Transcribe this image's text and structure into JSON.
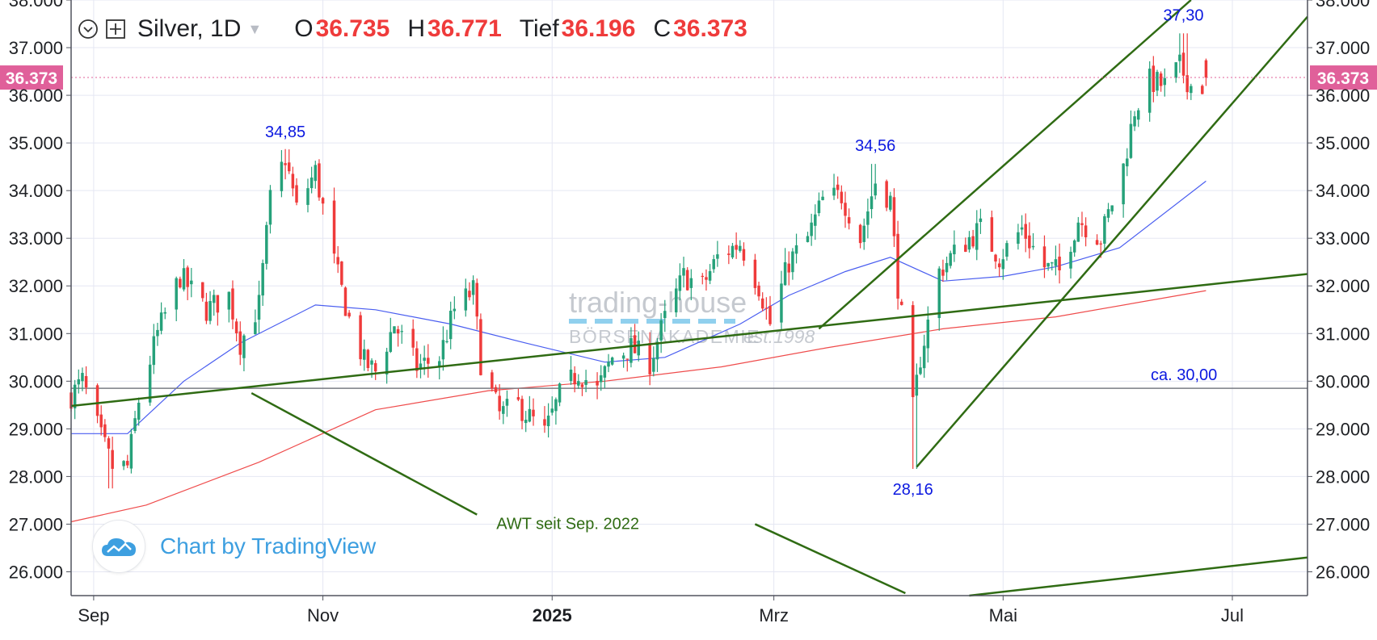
{
  "header": {
    "symbol": "Silver, 1D",
    "open_label": "O",
    "open": "36.735",
    "high_label": "H",
    "high": "36.771",
    "low_label": "Tief",
    "low": "36.196",
    "close_label": "C",
    "close": "36.373"
  },
  "attribution": "Chart by TradingView",
  "watermark": {
    "line1": "trading-house",
    "line2": "BÖRSENAKADEMIE",
    "line3": "est.1998"
  },
  "colors": {
    "up": "#26a17a",
    "down": "#ef3b3b",
    "ma_short": "#4a5ef0",
    "ma_long": "#ef4b4b",
    "trendline": "#2f6b13",
    "annotation": "#0b18e0",
    "price_tag": "#e0609a",
    "grid": "#e5e7f3"
  },
  "icons": {
    "collapse": "chevron-down-circle-icon",
    "add_symbol": "plus-square-icon",
    "logo": "tradingview-cloud-icon"
  },
  "chart_data": {
    "type": "candlestick",
    "xlabel": "",
    "ylabel": "",
    "grid": true,
    "legend": "none",
    "x_range": [
      "2024-08-26",
      "2025-07-21"
    ],
    "y_range": [
      25.5,
      38.0
    ],
    "y_ticks": [
      "26.000",
      "27.000",
      "28.000",
      "29.000",
      "30.000",
      "31.000",
      "32.000",
      "33.000",
      "34.000",
      "35.000",
      "36.000",
      "37.000",
      "38.000"
    ],
    "x_ticks": [
      {
        "date": "2024-09-01",
        "label": "Sep",
        "bold": false
      },
      {
        "date": "2024-11-01",
        "label": "Nov",
        "bold": false
      },
      {
        "date": "2025-01-01",
        "label": "2025",
        "bold": true
      },
      {
        "date": "2025-03-01",
        "label": "Mrz",
        "bold": false
      },
      {
        "date": "2025-05-01",
        "label": "Mai",
        "bold": false
      },
      {
        "date": "2025-07-01",
        "label": "Jul",
        "bold": false
      }
    ],
    "last_price": {
      "value": 36.373,
      "label": "36.373"
    },
    "price_path": [
      [
        "2024-08-26",
        29.7
      ],
      [
        "2024-08-29",
        30.0
      ],
      [
        "2024-09-03",
        28.8
      ],
      [
        "2024-09-06",
        28.2
      ],
      [
        "2024-09-10",
        28.2
      ],
      [
        "2024-09-13",
        29.6
      ],
      [
        "2024-09-18",
        31.0
      ],
      [
        "2024-09-24",
        32.2
      ],
      [
        "2024-10-01",
        31.5
      ],
      [
        "2024-10-07",
        31.8
      ],
      [
        "2024-10-10",
        30.8
      ],
      [
        "2024-10-15",
        31.6
      ],
      [
        "2024-10-18",
        33.8
      ],
      [
        "2024-10-22",
        34.7
      ],
      [
        "2024-10-25",
        33.6
      ],
      [
        "2024-10-30",
        34.4
      ],
      [
        "2024-11-04",
        32.5
      ],
      [
        "2024-11-08",
        31.3
      ],
      [
        "2024-11-12",
        30.4
      ],
      [
        "2024-11-15",
        30.2
      ],
      [
        "2024-11-20",
        31.2
      ],
      [
        "2024-11-26",
        30.3
      ],
      [
        "2024-12-02",
        30.5
      ],
      [
        "2024-12-06",
        31.5
      ],
      [
        "2024-12-11",
        31.9
      ],
      [
        "2024-12-13",
        30.4
      ],
      [
        "2024-12-18",
        29.3
      ],
      [
        "2024-12-23",
        29.5
      ],
      [
        "2024-12-30",
        28.9
      ],
      [
        "2025-01-03",
        29.7
      ],
      [
        "2025-01-08",
        30.2
      ],
      [
        "2025-01-13",
        29.8
      ],
      [
        "2025-01-17",
        30.5
      ],
      [
        "2025-01-22",
        30.7
      ],
      [
        "2025-01-27",
        30.4
      ],
      [
        "2025-01-31",
        31.3
      ],
      [
        "2025-02-05",
        32.2
      ],
      [
        "2025-02-10",
        32.0
      ],
      [
        "2025-02-14",
        32.6
      ],
      [
        "2025-02-20",
        32.9
      ],
      [
        "2025-02-25",
        32.0
      ],
      [
        "2025-02-28",
        31.2
      ],
      [
        "2025-03-05",
        32.5
      ],
      [
        "2025-03-10",
        33.0
      ],
      [
        "2025-03-14",
        33.8
      ],
      [
        "2025-03-19",
        33.9
      ],
      [
        "2025-03-24",
        33.0
      ],
      [
        "2025-03-28",
        34.2
      ],
      [
        "2025-04-01",
        33.8
      ],
      [
        "2025-04-03",
        32.0
      ],
      [
        "2025-04-07",
        29.4
      ],
      [
        "2025-04-09",
        30.5
      ],
      [
        "2025-04-14",
        32.3
      ],
      [
        "2025-04-17",
        32.6
      ],
      [
        "2025-04-22",
        33.0
      ],
      [
        "2025-04-25",
        33.2
      ],
      [
        "2025-04-30",
        32.6
      ],
      [
        "2025-05-06",
        33.2
      ],
      [
        "2025-05-12",
        32.4
      ],
      [
        "2025-05-16",
        32.3
      ],
      [
        "2025-05-21",
        33.4
      ],
      [
        "2025-05-27",
        33.0
      ],
      [
        "2025-06-02",
        34.5
      ],
      [
        "2025-06-05",
        35.7
      ],
      [
        "2025-06-09",
        36.3
      ],
      [
        "2025-06-13",
        36.2
      ],
      [
        "2025-06-17",
        36.6
      ],
      [
        "2025-06-20",
        36.2
      ],
      [
        "2025-06-24",
        36.2
      ]
    ],
    "price_spikes": [
      {
        "date": "2024-09-06",
        "low": 27.75
      },
      {
        "date": "2024-10-22",
        "high": 34.85
      },
      {
        "date": "2025-03-28",
        "high": 34.56
      },
      {
        "date": "2025-04-07",
        "low": 28.16
      },
      {
        "date": "2025-06-18",
        "high": 37.3
      }
    ],
    "moving_averages": [
      {
        "color_key": "ma_short",
        "points": [
          [
            "2024-08-26",
            28.9
          ],
          [
            "2024-09-10",
            28.9
          ],
          [
            "2024-09-25",
            30.0
          ],
          [
            "2024-10-10",
            30.8
          ],
          [
            "2024-10-30",
            31.6
          ],
          [
            "2024-11-15",
            31.5
          ],
          [
            "2024-12-05",
            31.2
          ],
          [
            "2024-12-25",
            30.8
          ],
          [
            "2025-01-15",
            30.4
          ],
          [
            "2025-01-31",
            30.5
          ],
          [
            "2025-02-20",
            31.2
          ],
          [
            "2025-03-05",
            31.8
          ],
          [
            "2025-03-20",
            32.3
          ],
          [
            "2025-04-01",
            32.6
          ],
          [
            "2025-04-15",
            32.1
          ],
          [
            "2025-05-01",
            32.2
          ],
          [
            "2025-05-15",
            32.4
          ],
          [
            "2025-06-01",
            32.8
          ],
          [
            "2025-06-24",
            34.2
          ]
        ]
      },
      {
        "color_key": "ma_long",
        "points": [
          [
            "2024-08-26",
            27.05
          ],
          [
            "2024-09-15",
            27.4
          ],
          [
            "2024-10-15",
            28.3
          ],
          [
            "2024-11-15",
            29.4
          ],
          [
            "2024-12-15",
            29.8
          ],
          [
            "2025-01-15",
            30.0
          ],
          [
            "2025-02-15",
            30.3
          ],
          [
            "2025-03-15",
            30.7
          ],
          [
            "2025-04-15",
            31.1
          ],
          [
            "2025-05-15",
            31.35
          ],
          [
            "2025-06-24",
            31.9
          ]
        ]
      }
    ],
    "trendlines": [
      {
        "name": "AWT seit Sep. 2022",
        "from": [
          "2024-08-26",
          29.48
        ],
        "to": [
          "2025-07-21",
          32.25
        ]
      },
      {
        "from": [
          "2024-10-13",
          29.75
        ],
        "to": [
          "2024-12-12",
          27.2
        ]
      },
      {
        "from": [
          "2025-02-24",
          27.0
        ],
        "to": [
          "2025-04-05",
          25.55
        ]
      },
      {
        "from": [
          "2025-04-22",
          25.5
        ],
        "to": [
          "2025-07-21",
          26.3
        ]
      },
      {
        "from": [
          "2025-03-13",
          31.1
        ],
        "to": [
          "2025-06-20",
          38.0
        ]
      },
      {
        "from": [
          "2025-04-08",
          28.2
        ],
        "to": [
          "2025-07-21",
          37.65
        ]
      }
    ],
    "horizontal_line": {
      "value": 29.85,
      "label": "ca. 30,00"
    },
    "annotations": [
      {
        "text": "34,85",
        "date": "2024-10-22",
        "value": 34.85,
        "pos": "above"
      },
      {
        "text": "34,56",
        "date": "2025-03-28",
        "value": 34.56,
        "pos": "above"
      },
      {
        "text": "28,16",
        "date": "2025-04-07",
        "value": 28.16,
        "pos": "below"
      },
      {
        "text": "37,30",
        "date": "2025-06-18",
        "value": 37.3,
        "pos": "above"
      },
      {
        "text": "AWT seit Sep. 2022",
        "date": "2024-12-12",
        "value": 26.9,
        "pos": "right"
      }
    ]
  }
}
